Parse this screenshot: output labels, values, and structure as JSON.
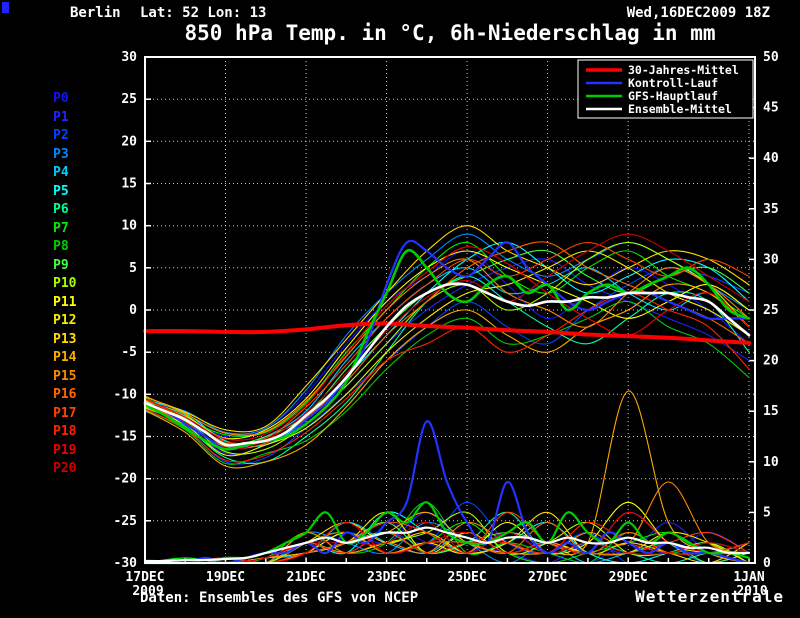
{
  "header": {
    "station": "Berlin",
    "coords": "Lat: 52 Lon: 13",
    "datetime": "Wed,16DEC2009 18Z",
    "title": "850 hPa Temp. in °C, 6h-Niederschlag in mm"
  },
  "footer": {
    "source": "Daten: Ensembles des GFS von NCEP",
    "brand": "Wetterzentrale"
  },
  "chart_data": {
    "type": "line",
    "title": "850 hPa Temp. in °C, 6h-Niederschlag in mm",
    "x_domain": [
      0,
      15.15
    ],
    "x_ticks": [
      {
        "d": 0,
        "label": "17DEC",
        "sub": "2009"
      },
      {
        "d": 2,
        "label": "19DEC"
      },
      {
        "d": 4,
        "label": "21DEC"
      },
      {
        "d": 6,
        "label": "23DEC"
      },
      {
        "d": 8,
        "label": "25DEC"
      },
      {
        "d": 10,
        "label": "27DEC"
      },
      {
        "d": 12,
        "label": "29DEC"
      },
      {
        "d": 15,
        "label": "1JAN",
        "sub": "2010"
      }
    ],
    "y_left": {
      "min": -30,
      "max": 30,
      "ticks": [
        30,
        25,
        20,
        15,
        10,
        5,
        0,
        -5,
        -10,
        -15,
        -20,
        -25,
        -30
      ]
    },
    "y_right": {
      "min": 0,
      "max": 50,
      "ticks": [
        50,
        45,
        40,
        35,
        30,
        25,
        20,
        15,
        10,
        5,
        0
      ]
    },
    "x_main": [
      0,
      0.5,
      1,
      1.5,
      2,
      2.5,
      3,
      3.5,
      4,
      4.5,
      5,
      5.5,
      6,
      6.5,
      7,
      7.5,
      8,
      8.5,
      9,
      9.5,
      10,
      10.5,
      11,
      11.5,
      12,
      12.5,
      13,
      13.5,
      14,
      14.5,
      15
    ],
    "x_members": [
      0,
      1,
      2,
      3,
      4,
      5,
      6,
      7,
      8,
      9,
      10,
      11,
      12,
      13,
      14,
      15
    ],
    "main_series": [
      {
        "name": "30-Jahres-Mittel",
        "color": "#ff0000",
        "x": "x_members",
        "temp": [
          -2.5,
          -2.5,
          -2.6,
          -2.6,
          -2.3,
          -1.8,
          -1.6,
          -1.9,
          -2.1,
          -2.4,
          -2.6,
          -2.9,
          -3.1,
          -3.3,
          -3.6,
          -3.9
        ]
      },
      {
        "name": "Kontroll-Lauf",
        "color": "#2233ff",
        "x": "x_main",
        "temp": [
          -11,
          -12,
          -13.5,
          -15,
          -16.5,
          -16,
          -15.5,
          -15,
          -13,
          -11,
          -8,
          -4,
          3,
          8,
          7,
          5,
          4,
          6,
          8,
          5,
          3,
          1,
          0,
          1,
          2,
          2,
          1,
          0,
          -1,
          -1,
          -1
        ],
        "precip": [
          0,
          0,
          0,
          0.5,
          0,
          0.5,
          1,
          1,
          2,
          1,
          3,
          2,
          4,
          6,
          14,
          8,
          4,
          2,
          8,
          3,
          1,
          2,
          1,
          3,
          2,
          1,
          2,
          1,
          1,
          0.5,
          0
        ]
      },
      {
        "name": "GFS-Hauptlauf",
        "color": "#00cc00",
        "x": "x_main",
        "temp": [
          -11.2,
          -12.5,
          -14,
          -15.5,
          -16.5,
          -16,
          -15.5,
          -15,
          -13.5,
          -11.5,
          -8.5,
          -3,
          2,
          7,
          5,
          2,
          1,
          3,
          4,
          2,
          3,
          0,
          2,
          3,
          2,
          3,
          4,
          5,
          3,
          0,
          -1
        ],
        "precip": [
          0,
          0,
          0,
          0,
          0.5,
          0.5,
          1,
          2,
          3,
          5,
          2,
          3,
          5,
          4,
          6,
          3,
          2,
          2,
          3,
          4,
          2,
          5,
          3,
          2,
          4,
          2,
          3,
          2,
          1,
          1,
          0.5
        ]
      },
      {
        "name": "Ensemble-Mittel",
        "color": "#ffffff",
        "x": "x_main",
        "temp": [
          -11,
          -12,
          -13,
          -14.5,
          -16,
          -15.8,
          -15.5,
          -14.5,
          -12.5,
          -10.5,
          -8,
          -5,
          -2,
          0.5,
          2,
          3,
          3,
          2,
          1,
          0.5,
          1,
          1,
          1.5,
          1.5,
          2,
          2,
          2,
          1.5,
          1,
          -1,
          -3
        ],
        "precip": [
          0.2,
          0.2,
          0.3,
          0.3,
          0.4,
          0.5,
          1,
          1.5,
          2,
          2.5,
          2,
          2.5,
          3,
          3,
          3.5,
          3,
          2.5,
          2,
          2.5,
          2.5,
          2,
          2.5,
          2,
          2,
          2.5,
          2,
          2,
          1.5,
          1.5,
          1,
          1
        ]
      }
    ],
    "members": [
      {
        "name": "P0",
        "color": "#1111ff",
        "temp": [
          -10.5,
          -12.5,
          -15,
          -14,
          -10,
          -4,
          1,
          4,
          7,
          3,
          -1,
          2,
          5,
          3,
          0,
          -4
        ],
        "precip": [
          0,
          0,
          0,
          0.5,
          1,
          2,
          4,
          2,
          1,
          3,
          1,
          0,
          2,
          1,
          3,
          1
        ]
      },
      {
        "name": "P1",
        "color": "#2222ff",
        "temp": [
          -11,
          -13.5,
          -17,
          -16,
          -13,
          -9,
          -4,
          0,
          3,
          5,
          6,
          3,
          1,
          -1,
          -3,
          -6
        ],
        "precip": [
          0,
          0,
          0.5,
          0,
          1,
          3,
          2,
          5,
          2,
          1,
          0,
          2,
          1,
          4,
          1,
          0
        ]
      },
      {
        "name": "P2",
        "color": "#0044ff",
        "temp": [
          -12,
          -14,
          -18,
          -17.5,
          -14,
          -10,
          -6,
          -2,
          1,
          -2,
          -4,
          0,
          3,
          5,
          4,
          2
        ],
        "precip": [
          0,
          0,
          0,
          0,
          2,
          1,
          3,
          2,
          6,
          2,
          1,
          3,
          0,
          1,
          2,
          1
        ]
      },
      {
        "name": "P3",
        "color": "#0088ff",
        "temp": [
          -10.8,
          -12,
          -14.5,
          -14,
          -9.5,
          -3,
          2,
          6,
          9,
          6,
          4,
          6,
          8,
          6,
          3,
          0
        ],
        "precip": [
          0,
          0.5,
          0,
          0,
          3,
          2,
          1,
          4,
          2,
          0,
          2,
          1,
          5,
          2,
          0,
          1
        ]
      },
      {
        "name": "P4",
        "color": "#00ccff",
        "temp": [
          -11.5,
          -13,
          -16.5,
          -15,
          -12,
          -6,
          -1,
          3,
          5,
          2,
          3,
          5,
          2,
          0,
          2,
          -2
        ],
        "precip": [
          0,
          0,
          0,
          0.5,
          1,
          4,
          2,
          1,
          3,
          1,
          2,
          0,
          1,
          2,
          1,
          2
        ]
      },
      {
        "name": "P5",
        "color": "#00ffff",
        "temp": [
          -10.6,
          -12.2,
          -15.5,
          -16,
          -13,
          -8,
          -3,
          2,
          6,
          8,
          5,
          2,
          4,
          6,
          5,
          1
        ],
        "precip": [
          0,
          0,
          0.5,
          0,
          2,
          1,
          5,
          3,
          1,
          2,
          4,
          1,
          0,
          1,
          2,
          0
        ]
      },
      {
        "name": "P6",
        "color": "#00ff99",
        "temp": [
          -11.2,
          -13.8,
          -17.5,
          -18,
          -15,
          -11,
          -5,
          1,
          4,
          1,
          -2,
          -4,
          -1,
          2,
          1,
          -5
        ],
        "precip": [
          0,
          0,
          0,
          0.5,
          1,
          2,
          3,
          1,
          2,
          5,
          1,
          2,
          1,
          0,
          1,
          1
        ]
      },
      {
        "name": "P7",
        "color": "#00ee00",
        "temp": [
          -10.4,
          -12.8,
          -14.8,
          -14.5,
          -11,
          -5,
          0,
          5,
          8,
          4,
          2,
          5,
          7,
          4,
          2,
          -1
        ],
        "precip": [
          0,
          0.5,
          0,
          0,
          2,
          3,
          1,
          2,
          4,
          1,
          0,
          1,
          2,
          3,
          1,
          0
        ]
      },
      {
        "name": "P8",
        "color": "#00cc00",
        "temp": [
          -11.8,
          -14.2,
          -18.2,
          -17,
          -15.5,
          -12,
          -7,
          -3,
          -1,
          -4,
          -3,
          -1,
          1,
          -2,
          -4,
          -8
        ],
        "precip": [
          0,
          0,
          0,
          0.5,
          3,
          1,
          2,
          6,
          1,
          2,
          1,
          0,
          3,
          1,
          2,
          1
        ]
      },
      {
        "name": "P9",
        "color": "#44ff44",
        "temp": [
          -10.9,
          -12.4,
          -15.8,
          -15,
          -12.5,
          -7,
          -2,
          2,
          4,
          6,
          7,
          4,
          2,
          4,
          5,
          2
        ],
        "precip": [
          0,
          0,
          0.5,
          0,
          1,
          2,
          4,
          1,
          2,
          3,
          2,
          1,
          1,
          2,
          0,
          1
        ]
      },
      {
        "name": "P10",
        "color": "#aaff00",
        "temp": [
          -11.4,
          -13.2,
          -16.8,
          -16.5,
          -13.5,
          -9,
          -4,
          1,
          3,
          0,
          2,
          6,
          8,
          6,
          3,
          -2
        ],
        "precip": [
          0,
          0,
          0,
          0.5,
          2,
          1,
          2,
          3,
          5,
          1,
          2,
          4,
          1,
          1,
          2,
          0
        ]
      },
      {
        "name": "P11",
        "color": "#ffff00",
        "temp": [
          -10.7,
          -12.6,
          -15.2,
          -14.2,
          -10.5,
          -4.5,
          1,
          5,
          7,
          5,
          3,
          1,
          -1,
          1,
          3,
          0
        ],
        "precip": [
          0,
          0,
          0.5,
          0,
          1,
          3,
          1,
          2,
          1,
          4,
          1,
          2,
          6,
          2,
          1,
          1
        ]
      },
      {
        "name": "P12",
        "color": "#eeee00",
        "temp": [
          -11.6,
          -13.6,
          -17.2,
          -16,
          -14,
          -10,
          -5,
          -1,
          2,
          3,
          5,
          7,
          5,
          2,
          0,
          -3
        ],
        "precip": [
          0,
          0,
          0,
          0.5,
          1,
          2,
          5,
          1,
          3,
          1,
          2,
          1,
          1,
          3,
          2,
          0
        ]
      },
      {
        "name": "P13",
        "color": "#ffdd00",
        "temp": [
          -10.3,
          -12.1,
          -14.2,
          -13.8,
          -9,
          -3.5,
          2,
          7,
          10,
          7,
          5,
          3,
          5,
          7,
          6,
          3
        ],
        "precip": [
          0,
          0,
          0.5,
          0,
          2,
          4,
          2,
          3,
          1,
          2,
          5,
          1,
          2,
          1,
          0,
          2
        ]
      },
      {
        "name": "P14",
        "color": "#ffaa00",
        "temp": [
          -11.9,
          -14.5,
          -18.5,
          -18,
          -16,
          -11.5,
          -6,
          -2,
          0,
          -3,
          -5,
          -2,
          0,
          3,
          2,
          -2
        ],
        "precip": [
          0,
          0,
          0,
          0.5,
          1,
          2,
          3,
          5,
          2,
          1,
          1,
          2,
          17,
          4,
          1,
          0
        ]
      },
      {
        "name": "P15",
        "color": "#ff8800",
        "temp": [
          -10.2,
          -12.3,
          -14.6,
          -14.4,
          -10.8,
          -5.5,
          0,
          4,
          6,
          2,
          0,
          -2,
          2,
          5,
          3,
          -1
        ],
        "precip": [
          0,
          0,
          0.5,
          0,
          3,
          1,
          2,
          1,
          4,
          2,
          1,
          3,
          2,
          8,
          2,
          1
        ]
      },
      {
        "name": "P16",
        "color": "#ff6600",
        "temp": [
          -11.3,
          -13.4,
          -16.2,
          -15.8,
          -12.8,
          -8.5,
          -3,
          1,
          5,
          7,
          8,
          5,
          3,
          1,
          -1,
          -4
        ],
        "precip": [
          0,
          0,
          0,
          0.5,
          2,
          3,
          1,
          2,
          2,
          1,
          4,
          1,
          3,
          1,
          1,
          0
        ]
      },
      {
        "name": "P17",
        "color": "#ff4400",
        "temp": [
          -10.6,
          -12.9,
          -15.6,
          -15.2,
          -11.5,
          -6.5,
          -1,
          3,
          6,
          4,
          6,
          8,
          6,
          4,
          6,
          4
        ],
        "precip": [
          0,
          0,
          0.5,
          0,
          1,
          2,
          4,
          3,
          1,
          5,
          2,
          1,
          1,
          2,
          3,
          1
        ]
      },
      {
        "name": "P18",
        "color": "#ff2200",
        "temp": [
          -11.7,
          -14.1,
          -17.8,
          -17.2,
          -14.5,
          -10.5,
          -6,
          -4,
          -2,
          -5,
          -3,
          0,
          2,
          0,
          -2,
          -7
        ],
        "precip": [
          0,
          0,
          0,
          0.5,
          2,
          1,
          3,
          1,
          2,
          2,
          1,
          4,
          2,
          1,
          1,
          2
        ]
      },
      {
        "name": "P19",
        "color": "#ee0000",
        "temp": [
          -10.5,
          -12.7,
          -15.3,
          -14.7,
          -11.2,
          -5.2,
          0.5,
          4.5,
          7.5,
          5.5,
          2,
          -1,
          -3,
          0,
          2,
          -2
        ],
        "precip": [
          0,
          0,
          0.5,
          0,
          1,
          4,
          1,
          2,
          3,
          1,
          2,
          1,
          5,
          2,
          1,
          0
        ]
      },
      {
        "name": "P20",
        "color": "#cc0000",
        "temp": [
          -11.1,
          -13.3,
          -16.4,
          -15.4,
          -12.2,
          -7.5,
          -2.5,
          1.5,
          3.5,
          1,
          4,
          7,
          9,
          7,
          4,
          1
        ],
        "precip": [
          0,
          0,
          0,
          0.5,
          2,
          2,
          2,
          4,
          1,
          3,
          1,
          2,
          1,
          1,
          2,
          1
        ]
      }
    ]
  }
}
